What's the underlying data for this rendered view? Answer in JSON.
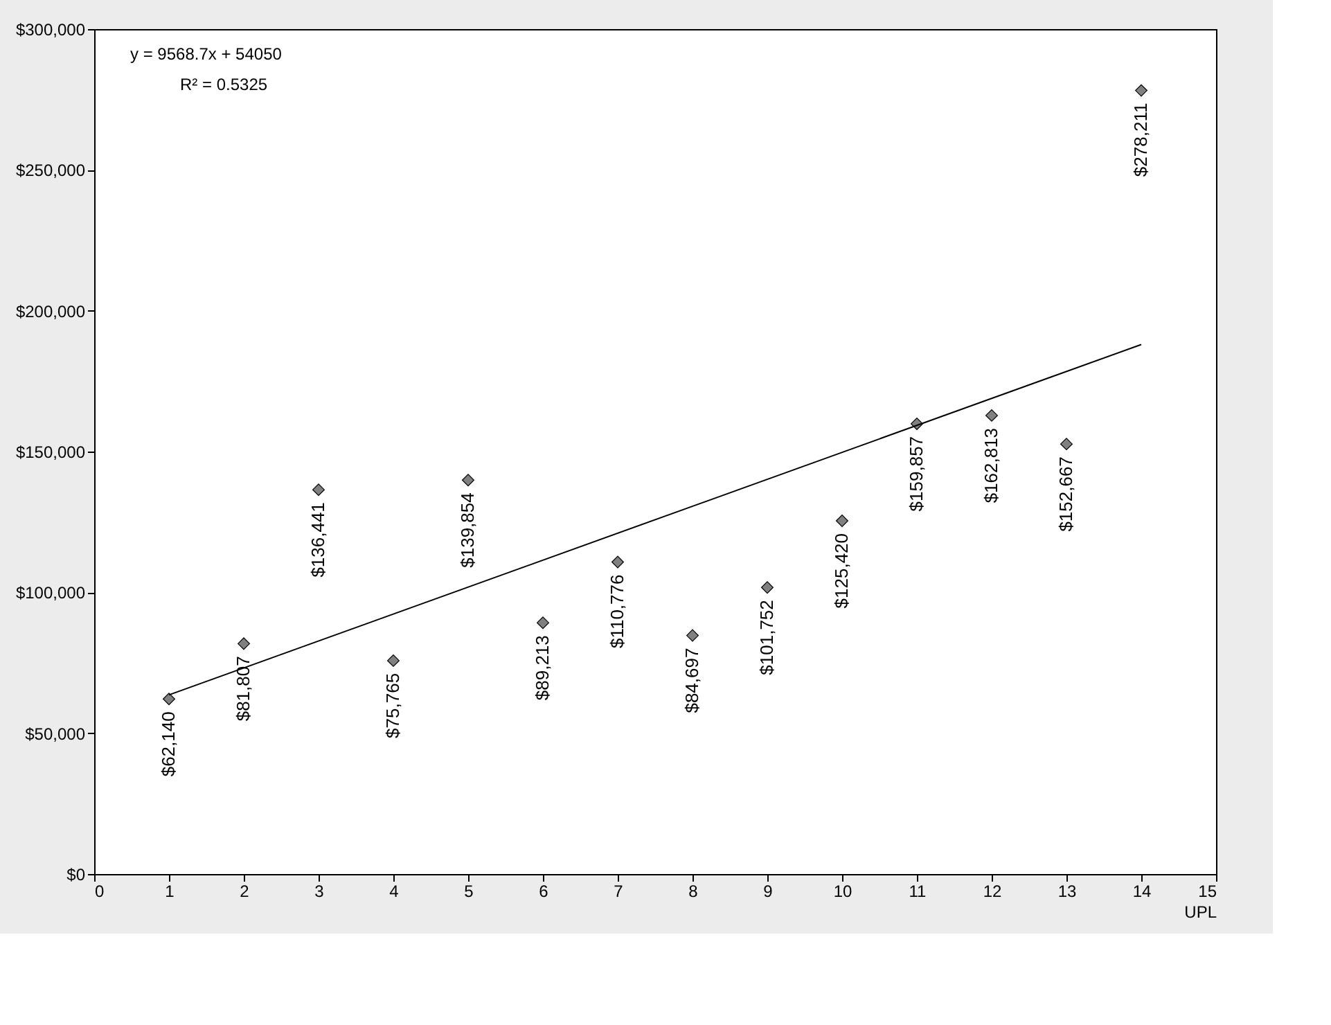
{
  "chart_data": {
    "type": "scatter",
    "xlabel": "UPL",
    "x": [
      1,
      2,
      3,
      4,
      5,
      6,
      7,
      8,
      9,
      10,
      11,
      12,
      13,
      14
    ],
    "series": [
      {
        "color": "#808080",
        "marker": "diamond",
        "values": [
          62140,
          81807,
          136441,
          75765,
          139854,
          89213,
          110776,
          84697,
          101752,
          125420,
          159857,
          162813,
          152667,
          278211
        ],
        "value_labels": [
          "$62,140",
          "$81,807",
          "$136,441",
          "$75,765",
          "$139,854",
          "$89,213",
          "$110,776",
          "$84,697",
          "$101,752",
          "$125,420",
          "$159,857",
          "$162,813",
          "$152,667",
          "$278,211"
        ]
      },
      {
        "type": "line",
        "color": "#000000",
        "marker": "none",
        "line_style": "solid",
        "x": [
          1,
          14
        ],
        "values": [
          63600,
          188000
        ]
      }
    ],
    "annotations": [
      "y = 9568.7x + 54050",
      "R² = 0.5325"
    ],
    "xlim": [
      0,
      15
    ],
    "xticks": [
      0,
      1,
      2,
      3,
      4,
      5,
      6,
      7,
      8,
      9,
      10,
      11,
      12,
      13,
      14,
      15
    ],
    "ylim": [
      0,
      300000
    ],
    "yticks": [
      {
        "value": 0,
        "label": "$0"
      },
      {
        "value": 50000,
        "label": "$50,000"
      },
      {
        "value": 100000,
        "label": "$100,000"
      },
      {
        "value": 150000,
        "label": "$150,000"
      },
      {
        "value": 200000,
        "label": "$200,000"
      },
      {
        "value": 250000,
        "label": "$250,000"
      },
      {
        "value": 300000,
        "label": "$300,000"
      }
    ],
    "grid": false
  }
}
